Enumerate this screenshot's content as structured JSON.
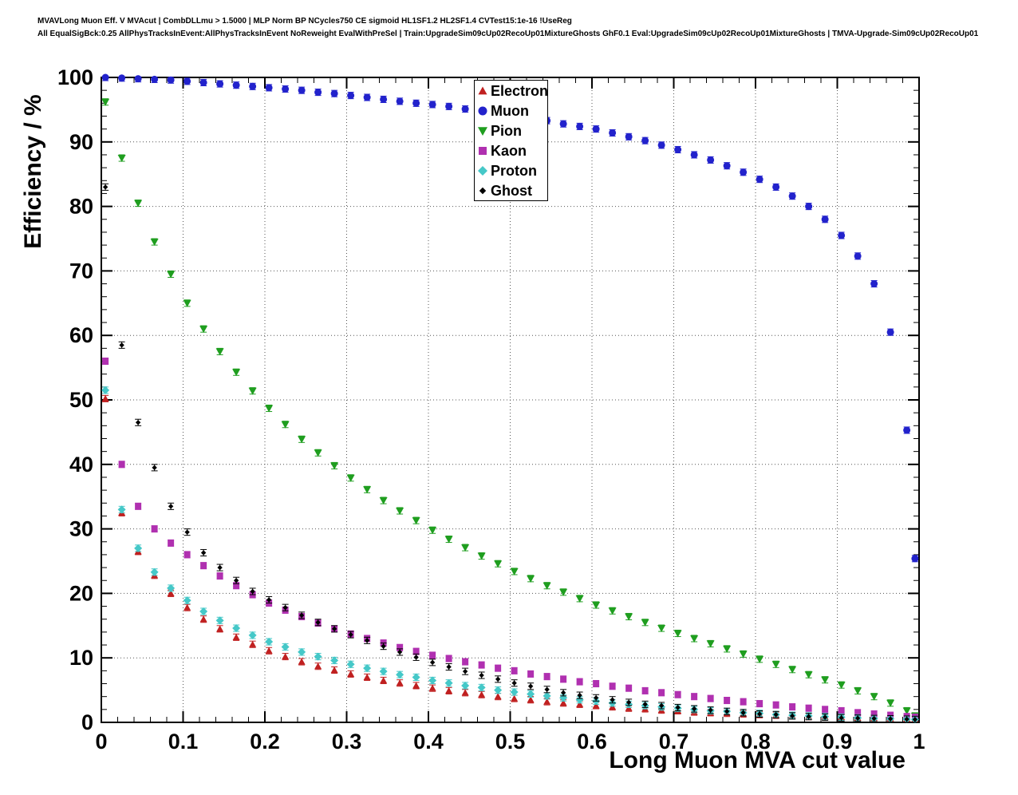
{
  "header": {
    "line1": "MVAVLong Muon Eff. V MVAcut | CombDLLmu > 1.5000 | MLP Norm BP NCycles750 CE sigmoid HL1SF1.2 HL2SF1.4 CVTest15:1e-16 !UseReg",
    "line2": "All EqualSigBck:0.25 AllPhysTracksInEvent:AllPhysTracksInEvent NoReweight EvalWithPreSel | Train:UpgradeSim09cUp02RecoUp01MixtureGhosts GhF0.1 Eval:UpgradeSim09cUp02RecoUp01MixtureGhosts | TMVA-Upgrade-Sim09cUp02RecoUp01"
  },
  "chart_data": {
    "type": "scatter",
    "title": "",
    "xlabel": "Long Muon MVA cut value",
    "ylabel": "Efficiency / %",
    "xlim": [
      0,
      1
    ],
    "ylim": [
      0,
      100
    ],
    "grid": "dotted",
    "grid_color": "#555555",
    "legend_position": "top-center",
    "xticks": [
      0,
      0.1,
      0.2,
      0.3,
      0.4,
      0.5,
      0.6,
      0.7,
      0.8,
      0.9,
      1
    ],
    "xtick_labels": [
      "0",
      "0.1",
      "0.2",
      "0.3",
      "0.4",
      "0.5",
      "0.6",
      "0.7",
      "0.8",
      "0.9",
      "1"
    ],
    "yticks": [
      0,
      10,
      20,
      30,
      40,
      50,
      60,
      70,
      80,
      90,
      100
    ],
    "ytick_labels": [
      "0",
      "10",
      "20",
      "30",
      "40",
      "50",
      "60",
      "70",
      "80",
      "90",
      "100"
    ],
    "x_minor_divisions": 5,
    "y_minor_divisions": 5,
    "x": [
      0.005,
      0.025,
      0.045,
      0.065,
      0.085,
      0.105,
      0.125,
      0.145,
      0.165,
      0.185,
      0.205,
      0.225,
      0.245,
      0.265,
      0.285,
      0.305,
      0.325,
      0.345,
      0.365,
      0.385,
      0.405,
      0.425,
      0.445,
      0.465,
      0.485,
      0.505,
      0.525,
      0.545,
      0.565,
      0.585,
      0.605,
      0.625,
      0.645,
      0.665,
      0.685,
      0.705,
      0.725,
      0.745,
      0.765,
      0.785,
      0.805,
      0.825,
      0.845,
      0.865,
      0.885,
      0.905,
      0.925,
      0.945,
      0.965,
      0.985,
      0.995
    ],
    "series": [
      {
        "name": "Electron",
        "color": "#c02020",
        "marker": "triangle-up",
        "size": 4.5,
        "err": 0.5,
        "values": [
          50.2,
          32.5,
          26.5,
          22.8,
          20.0,
          17.8,
          16.0,
          14.5,
          13.2,
          12.1,
          11.1,
          10.2,
          9.4,
          8.7,
          8.1,
          7.5,
          7.0,
          6.5,
          6.1,
          5.7,
          5.3,
          4.9,
          4.6,
          4.3,
          4.0,
          3.7,
          3.5,
          3.2,
          3.0,
          2.8,
          2.6,
          2.4,
          2.2,
          2.1,
          1.9,
          1.8,
          1.6,
          1.5,
          1.4,
          1.3,
          1.2,
          1.1,
          1.0,
          0.9,
          0.85,
          0.8,
          0.7,
          0.65,
          0.6,
          0.55,
          0.5
        ]
      },
      {
        "name": "Muon",
        "color": "#2222cc",
        "marker": "circle",
        "size": 4.5,
        "err": 0.5,
        "values": [
          100.0,
          99.9,
          99.8,
          99.7,
          99.6,
          99.4,
          99.2,
          99.0,
          98.8,
          98.6,
          98.4,
          98.2,
          98.0,
          97.7,
          97.5,
          97.2,
          96.9,
          96.6,
          96.3,
          96.0,
          95.8,
          95.5,
          95.1,
          94.8,
          94.5,
          94.2,
          93.8,
          93.3,
          92.8,
          92.4,
          92.0,
          91.4,
          90.8,
          90.2,
          89.5,
          88.8,
          88.0,
          87.2,
          86.3,
          85.3,
          84.2,
          83.0,
          81.6,
          80.0,
          78.0,
          75.5,
          72.3,
          68.0,
          60.5,
          45.3,
          25.4
        ]
      },
      {
        "name": "Pion",
        "color": "#1f9e1f",
        "marker": "triangle-down",
        "size": 5,
        "err": 0.5,
        "values": [
          96.2,
          87.5,
          80.5,
          74.5,
          69.5,
          65.0,
          61.0,
          57.5,
          54.3,
          51.4,
          48.7,
          46.2,
          43.9,
          41.8,
          39.8,
          37.9,
          36.1,
          34.4,
          32.8,
          31.3,
          29.8,
          28.4,
          27.1,
          25.8,
          24.6,
          23.4,
          22.3,
          21.2,
          20.2,
          19.2,
          18.2,
          17.3,
          16.4,
          15.5,
          14.6,
          13.8,
          13.0,
          12.2,
          11.4,
          10.6,
          9.8,
          9.0,
          8.2,
          7.4,
          6.6,
          5.8,
          4.9,
          4.0,
          3.0,
          1.8,
          1.0
        ]
      },
      {
        "name": "Kaon",
        "color": "#b030b0",
        "marker": "square",
        "size": 4,
        "err": 0.5,
        "values": [
          56.0,
          40.0,
          33.5,
          30.0,
          27.8,
          26.0,
          24.3,
          22.7,
          21.2,
          19.8,
          18.5,
          17.4,
          16.4,
          15.4,
          14.5,
          13.7,
          13.0,
          12.3,
          11.6,
          11.0,
          10.4,
          9.9,
          9.4,
          8.9,
          8.4,
          8.0,
          7.5,
          7.1,
          6.7,
          6.3,
          6.0,
          5.6,
          5.3,
          4.9,
          4.6,
          4.3,
          4.0,
          3.7,
          3.4,
          3.2,
          2.9,
          2.7,
          2.4,
          2.2,
          2.0,
          1.8,
          1.5,
          1.3,
          1.1,
          0.9,
          0.8
        ]
      },
      {
        "name": "Proton",
        "color": "#45c8c8",
        "marker": "diamond",
        "size": 5,
        "err": 0.5,
        "values": [
          51.5,
          33.0,
          27.0,
          23.3,
          20.8,
          18.9,
          17.2,
          15.8,
          14.6,
          13.5,
          12.5,
          11.7,
          10.9,
          10.2,
          9.6,
          9.0,
          8.4,
          7.9,
          7.4,
          7.0,
          6.5,
          6.1,
          5.7,
          5.4,
          5.0,
          4.7,
          4.4,
          4.1,
          3.8,
          3.5,
          3.3,
          3.0,
          2.8,
          2.6,
          2.4,
          2.2,
          2.0,
          1.8,
          1.7,
          1.5,
          1.4,
          1.2,
          1.1,
          1.0,
          0.9,
          0.8,
          0.7,
          0.6,
          0.55,
          0.5,
          0.45
        ]
      },
      {
        "name": "Ghost",
        "color": "#000000",
        "marker": "diamond",
        "size": 3.2,
        "err": 0.5,
        "values": [
          83.0,
          58.5,
          46.5,
          39.5,
          33.5,
          29.5,
          26.3,
          24.0,
          22.0,
          20.3,
          19.0,
          17.8,
          16.6,
          15.5,
          14.5,
          13.6,
          12.7,
          11.8,
          10.9,
          10.1,
          9.3,
          8.6,
          7.9,
          7.3,
          6.7,
          6.1,
          5.6,
          5.1,
          4.6,
          4.2,
          3.8,
          3.5,
          3.1,
          2.8,
          2.6,
          2.3,
          2.1,
          1.9,
          1.7,
          1.5,
          1.3,
          1.2,
          1.0,
          0.9,
          0.8,
          0.7,
          0.65,
          0.6,
          0.55,
          0.5,
          0.45
        ]
      }
    ]
  }
}
